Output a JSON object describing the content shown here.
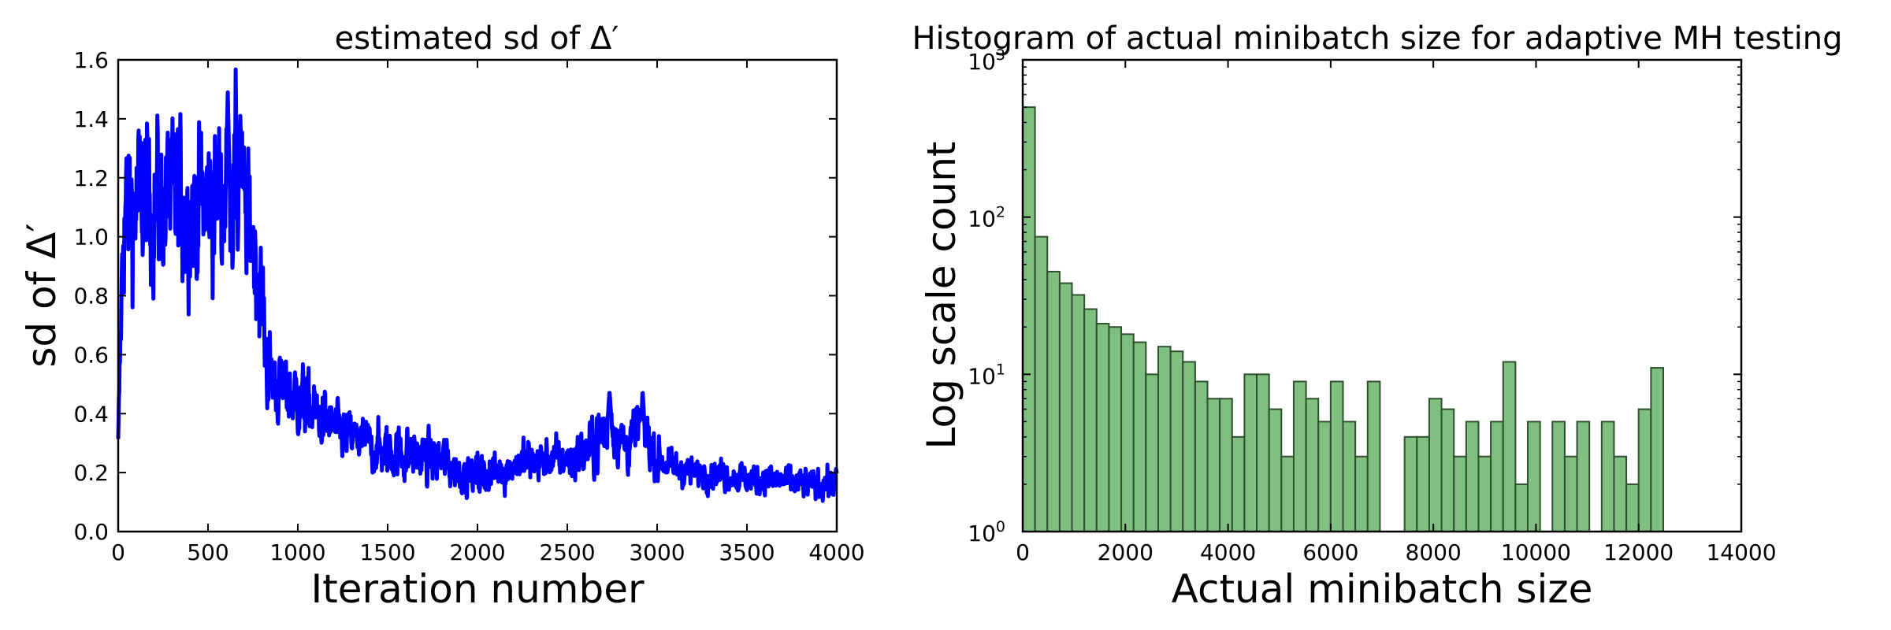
{
  "chart_data": [
    {
      "type": "line",
      "title": "estimated sd of Δ′",
      "xlabel": "Iteration number",
      "ylabel": "sd of Δ′",
      "xlim": [
        0,
        4000
      ],
      "ylim": [
        0,
        1.6
      ],
      "xticks": [
        "0",
        "500",
        "1000",
        "1500",
        "2000",
        "2500",
        "3000",
        "3500",
        "4000"
      ],
      "yticks": [
        "0.0",
        "0.2",
        "0.4",
        "0.6",
        "0.8",
        "1.0",
        "1.2",
        "1.4",
        "1.6"
      ],
      "grid": false,
      "series": [
        {
          "color": "#0000ff",
          "noise": "high-frequency, amplitude shown by band width",
          "trend_x": [
            0,
            30,
            100,
            200,
            300,
            400,
            500,
            600,
            650,
            700,
            750,
            800,
            830,
            900,
            1000,
            1100,
            1200,
            1300,
            1400,
            1500,
            1600,
            1700,
            1800,
            1900,
            2000,
            2100,
            2200,
            2300,
            2400,
            2500,
            2600,
            2700,
            2750,
            2800,
            2850,
            2900,
            2950,
            3000,
            3100,
            3200,
            3300,
            3400,
            3500,
            3600,
            3700,
            3800,
            3900,
            4000
          ],
          "trend_y": [
            0.3,
            1.08,
            1.12,
            1.12,
            1.12,
            1.1,
            1.12,
            1.15,
            1.18,
            1.1,
            1.0,
            0.78,
            0.55,
            0.48,
            0.45,
            0.4,
            0.35,
            0.32,
            0.29,
            0.27,
            0.27,
            0.25,
            0.24,
            0.2,
            0.19,
            0.2,
            0.23,
            0.24,
            0.24,
            0.25,
            0.27,
            0.34,
            0.37,
            0.3,
            0.3,
            0.36,
            0.3,
            0.25,
            0.21,
            0.2,
            0.2,
            0.19,
            0.18,
            0.18,
            0.17,
            0.16,
            0.16,
            0.17
          ],
          "spread_y": [
            0.02,
            0.16,
            0.16,
            0.16,
            0.16,
            0.16,
            0.16,
            0.17,
            0.17,
            0.14,
            0.12,
            0.11,
            0.08,
            0.07,
            0.07,
            0.06,
            0.05,
            0.05,
            0.05,
            0.05,
            0.06,
            0.05,
            0.05,
            0.04,
            0.04,
            0.04,
            0.04,
            0.04,
            0.04,
            0.04,
            0.05,
            0.07,
            0.06,
            0.05,
            0.05,
            0.06,
            0.05,
            0.04,
            0.03,
            0.03,
            0.03,
            0.03,
            0.03,
            0.03,
            0.03,
            0.03,
            0.03,
            0.03
          ],
          "peaks": [
            {
              "x": 610,
              "y": 1.49
            },
            {
              "x": 680,
              "y": 1.41
            },
            {
              "x": 2735,
              "y": 0.48
            },
            {
              "x": 2920,
              "y": 0.47
            }
          ]
        }
      ]
    },
    {
      "type": "bar",
      "title": "Histogram of actual minibatch size for adaptive MH testing",
      "xlabel": "Actual minibatch size",
      "ylabel": "Log scale count",
      "xlim": [
        0,
        14000
      ],
      "ylim": [
        1,
        1000
      ],
      "yscale": "log",
      "xticks": [
        "0",
        "2000",
        "4000",
        "6000",
        "8000",
        "10000",
        "12000",
        "14000"
      ],
      "yticks": [
        {
          "value": 1,
          "base": "10",
          "exp": "0"
        },
        {
          "value": 10,
          "base": "10",
          "exp": "1"
        },
        {
          "value": 100,
          "base": "10",
          "exp": "2"
        },
        {
          "value": 1000,
          "base": "10",
          "exp": "3"
        }
      ],
      "grid": false,
      "bar_color": "#7fbf7f",
      "bar_edge_color": "#2f4f2f",
      "bin_width": 240,
      "bin_start": 0,
      "values": [
        500,
        75,
        45,
        38,
        32,
        26,
        21,
        20,
        18,
        16,
        10,
        15,
        14,
        12,
        9,
        7,
        7,
        4,
        10,
        10,
        6,
        3,
        9,
        7,
        5,
        9,
        5,
        3,
        9,
        1,
        1,
        4,
        4,
        7,
        6,
        3,
        5,
        3,
        5,
        12,
        2,
        5,
        1,
        5,
        3,
        5,
        1,
        5,
        3,
        2,
        6,
        11
      ]
    }
  ]
}
